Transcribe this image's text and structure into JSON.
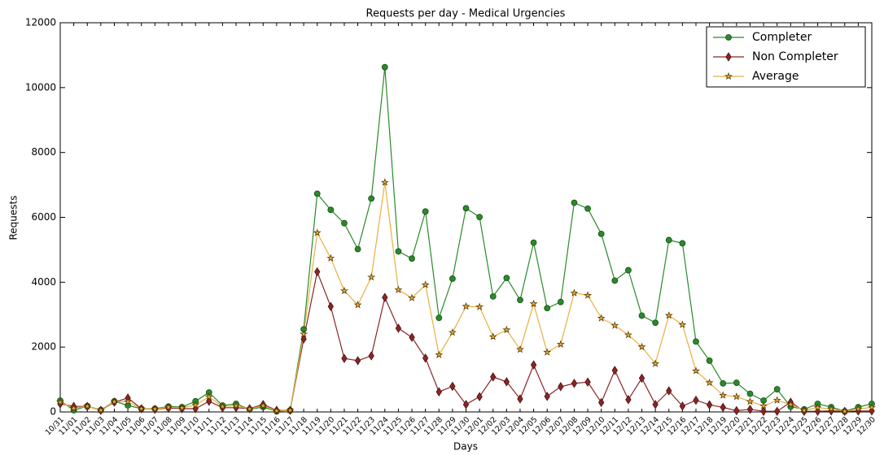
{
  "chart_data": {
    "type": "line",
    "title": "Requests per day - Medical Urgencies",
    "xlabel": "Days",
    "ylabel": "Requests",
    "categories": [
      "10/31",
      "11/01",
      "11/02",
      "11/03",
      "11/04",
      "11/05",
      "11/06",
      "11/07",
      "11/08",
      "11/09",
      "11/10",
      "11/11",
      "11/12",
      "11/13",
      "11/14",
      "11/15",
      "11/16",
      "11/17",
      "11/18",
      "11/19",
      "11/20",
      "11/21",
      "11/22",
      "11/23",
      "11/24",
      "11/25",
      "11/26",
      "11/27",
      "11/28",
      "11/29",
      "11/30",
      "12/01",
      "12/02",
      "12/03",
      "12/04",
      "12/05",
      "12/06",
      "12/07",
      "12/08",
      "12/09",
      "12/10",
      "12/11",
      "12/12",
      "12/13",
      "12/14",
      "12/15",
      "12/16",
      "12/17",
      "12/18",
      "12/19",
      "12/20",
      "12/21",
      "12/22",
      "12/23",
      "12/24",
      "12/25",
      "12/26",
      "12/27",
      "12/28",
      "12/29",
      "12/30"
    ],
    "series": [
      {
        "name": "Completer",
        "color": "#2a8a2a",
        "marker": "circle",
        "values": [
          350,
          50,
          180,
          60,
          330,
          200,
          100,
          100,
          170,
          150,
          330,
          600,
          200,
          250,
          80,
          150,
          20,
          50,
          2550,
          6730,
          6230,
          5820,
          5020,
          6580,
          10630,
          4950,
          4730,
          6180,
          2900,
          4110,
          6280,
          6010,
          3560,
          4130,
          3450,
          5220,
          3200,
          3390,
          6450,
          6270,
          5490,
          4050,
          4370,
          2970,
          2750,
          5300,
          5200,
          2170,
          1580,
          880,
          900,
          560,
          350,
          700,
          160,
          80,
          250,
          150,
          20,
          150,
          250
        ]
      },
      {
        "name": "Non Completer",
        "color": "#8b2525",
        "marker": "diamond",
        "values": [
          250,
          170,
          170,
          50,
          300,
          430,
          100,
          80,
          120,
          100,
          100,
          330,
          130,
          130,
          100,
          230,
          50,
          50,
          2250,
          4320,
          3250,
          1650,
          1580,
          1730,
          3530,
          2580,
          2300,
          1660,
          620,
          790,
          230,
          470,
          1080,
          930,
          400,
          1450,
          480,
          780,
          880,
          920,
          290,
          1280,
          380,
          1040,
          230,
          650,
          180,
          360,
          220,
          140,
          40,
          80,
          20,
          20,
          300,
          20,
          20,
          30,
          20,
          30,
          30
        ]
      },
      {
        "name": "Average",
        "color": "#e8b040",
        "marker": "star",
        "values": [
          300,
          110,
          175,
          55,
          315,
          315,
          100,
          90,
          145,
          125,
          215,
          465,
          165,
          190,
          90,
          190,
          35,
          50,
          2400,
          5525,
          4740,
          3735,
          3300,
          4155,
          7080,
          3765,
          3515,
          3920,
          1760,
          2450,
          3255,
          3240,
          2320,
          2530,
          1925,
          3335,
          1840,
          2085,
          3665,
          3595,
          2890,
          2665,
          2375,
          2005,
          1490,
          2975,
          2690,
          1265,
          900,
          510,
          470,
          320,
          185,
          360,
          230,
          50,
          135,
          90,
          20,
          90,
          140
        ]
      }
    ],
    "ylim": [
      0,
      12000
    ],
    "yticks": [
      0,
      2000,
      4000,
      6000,
      8000,
      10000,
      12000
    ],
    "legend": "upper right"
  }
}
